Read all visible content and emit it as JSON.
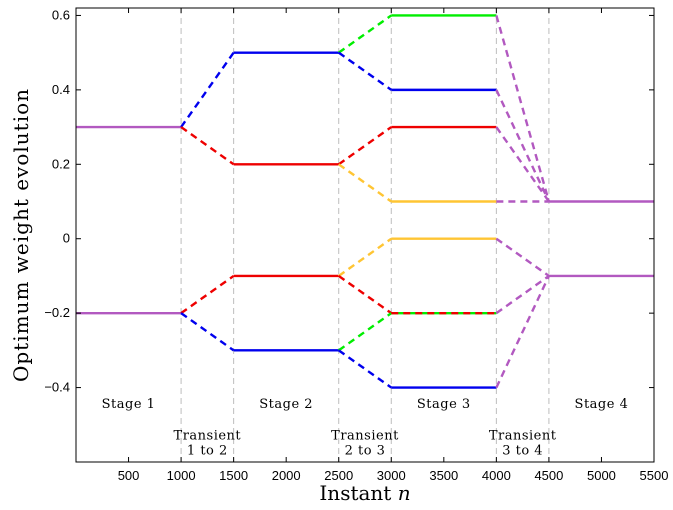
{
  "chart_data": {
    "type": "line",
    "xlabel": "Instant",
    "xlabel_var": "n",
    "ylabel": "Optimum weight evolution",
    "xlim": [
      0,
      5500
    ],
    "ylim": [
      -0.6,
      0.62
    ],
    "xticks": [
      500,
      1000,
      1500,
      2000,
      2500,
      3000,
      3500,
      4000,
      4500,
      5000,
      5500
    ],
    "yticks": [
      -0.4,
      -0.2,
      0,
      0.2,
      0.4,
      0.6
    ],
    "ytick_labels": [
      "−0.4",
      "−0.2",
      "0",
      "0.2",
      "0.4",
      "0.6"
    ],
    "vlines": [
      1000,
      1500,
      2500,
      3000,
      4000,
      4500
    ],
    "annotations": [
      {
        "lines": [
          "Stage 1"
        ],
        "x": 500,
        "y": -0.455
      },
      {
        "lines": [
          "Stage 2"
        ],
        "x": 2000,
        "y": -0.455
      },
      {
        "lines": [
          "Stage 3"
        ],
        "x": 3500,
        "y": -0.455
      },
      {
        "lines": [
          "Stage 4"
        ],
        "x": 5000,
        "y": -0.455
      },
      {
        "lines": [
          "Transient",
          "1 to 2"
        ],
        "x": 1250,
        "y": -0.54
      },
      {
        "lines": [
          "Transient",
          "2 to 3"
        ],
        "x": 2750,
        "y": -0.54
      },
      {
        "lines": [
          "Transient",
          "3 to 4"
        ],
        "x": 4250,
        "y": -0.54
      }
    ],
    "colors": {
      "blue": "#0000ee",
      "red": "#ee0000",
      "green": "#00ee00",
      "yellow": "#ffc533",
      "purple": "#b259c0"
    },
    "segments": [
      {
        "color": "purple",
        "x": [
          0,
          1000
        ],
        "y": [
          0.3,
          0.3
        ],
        "dash": false
      },
      {
        "color": "purple",
        "x": [
          0,
          1000
        ],
        "y": [
          -0.2,
          -0.2
        ],
        "dash": false
      },
      {
        "color": "blue",
        "x": [
          1000,
          1500
        ],
        "y": [
          0.3,
          0.5
        ],
        "dash": true
      },
      {
        "color": "red",
        "x": [
          1000,
          1500
        ],
        "y": [
          0.3,
          0.2
        ],
        "dash": true
      },
      {
        "color": "red",
        "x": [
          1000,
          1500
        ],
        "y": [
          -0.2,
          -0.1
        ],
        "dash": true
      },
      {
        "color": "blue",
        "x": [
          1000,
          1500
        ],
        "y": [
          -0.2,
          -0.3
        ],
        "dash": true
      },
      {
        "color": "blue",
        "x": [
          1500,
          2500
        ],
        "y": [
          0.5,
          0.5
        ],
        "dash": false
      },
      {
        "color": "red",
        "x": [
          1500,
          2500
        ],
        "y": [
          0.2,
          0.2
        ],
        "dash": false
      },
      {
        "color": "red",
        "x": [
          1500,
          2500
        ],
        "y": [
          -0.1,
          -0.1
        ],
        "dash": false
      },
      {
        "color": "blue",
        "x": [
          1500,
          2500
        ],
        "y": [
          -0.3,
          -0.3
        ],
        "dash": false
      },
      {
        "color": "green",
        "x": [
          2500,
          3000
        ],
        "y": [
          0.5,
          0.6
        ],
        "dash": true
      },
      {
        "color": "blue",
        "x": [
          2500,
          3000
        ],
        "y": [
          0.5,
          0.4
        ],
        "dash": true
      },
      {
        "color": "red",
        "x": [
          2500,
          3000
        ],
        "y": [
          0.2,
          0.3
        ],
        "dash": true
      },
      {
        "color": "yellow",
        "x": [
          2500,
          3000
        ],
        "y": [
          0.2,
          0.1
        ],
        "dash": true
      },
      {
        "color": "yellow",
        "x": [
          2500,
          3000
        ],
        "y": [
          -0.1,
          0.0
        ],
        "dash": true
      },
      {
        "color": "red",
        "x": [
          2500,
          3000
        ],
        "y": [
          -0.1,
          -0.2
        ],
        "dash": true
      },
      {
        "color": "green",
        "x": [
          2500,
          3000
        ],
        "y": [
          -0.3,
          -0.2
        ],
        "dash": true
      },
      {
        "color": "blue",
        "x": [
          2500,
          3000
        ],
        "y": [
          -0.3,
          -0.4
        ],
        "dash": true
      },
      {
        "color": "green",
        "x": [
          3000,
          4000
        ],
        "y": [
          0.6,
          0.6
        ],
        "dash": false
      },
      {
        "color": "blue",
        "x": [
          3000,
          4000
        ],
        "y": [
          0.4,
          0.4
        ],
        "dash": false
      },
      {
        "color": "red",
        "x": [
          3000,
          4000
        ],
        "y": [
          0.3,
          0.3
        ],
        "dash": false
      },
      {
        "color": "yellow",
        "x": [
          3000,
          4000
        ],
        "y": [
          0.1,
          0.1
        ],
        "dash": false
      },
      {
        "color": "yellow",
        "x": [
          3000,
          4000
        ],
        "y": [
          0.0,
          0.0
        ],
        "dash": false
      },
      {
        "color": "green",
        "x": [
          3000,
          4000
        ],
        "y": [
          -0.2,
          -0.2
        ],
        "dash": false
      },
      {
        "color": "red",
        "x": [
          3000,
          4000
        ],
        "y": [
          -0.2,
          -0.2
        ],
        "dash": true
      },
      {
        "color": "blue",
        "x": [
          3000,
          4000
        ],
        "y": [
          -0.4,
          -0.4
        ],
        "dash": false
      },
      {
        "color": "purple",
        "x": [
          4000,
          4500
        ],
        "y": [
          0.6,
          0.1
        ],
        "dash": true
      },
      {
        "color": "purple",
        "x": [
          4000,
          4500
        ],
        "y": [
          0.4,
          0.1
        ],
        "dash": true
      },
      {
        "color": "purple",
        "x": [
          4000,
          4500
        ],
        "y": [
          0.3,
          0.1
        ],
        "dash": true
      },
      {
        "color": "purple",
        "x": [
          4000,
          4500
        ],
        "y": [
          0.1,
          0.1
        ],
        "dash": true
      },
      {
        "color": "purple",
        "x": [
          4000,
          4500
        ],
        "y": [
          0.0,
          -0.1
        ],
        "dash": true
      },
      {
        "color": "purple",
        "x": [
          4000,
          4500
        ],
        "y": [
          -0.2,
          -0.1
        ],
        "dash": true
      },
      {
        "color": "purple",
        "x": [
          4000,
          4500
        ],
        "y": [
          -0.4,
          -0.1
        ],
        "dash": true
      },
      {
        "color": "purple",
        "x": [
          4500,
          5500
        ],
        "y": [
          0.1,
          0.1
        ],
        "dash": false
      },
      {
        "color": "purple",
        "x": [
          4500,
          5500
        ],
        "y": [
          -0.1,
          -0.1
        ],
        "dash": false
      }
    ]
  }
}
